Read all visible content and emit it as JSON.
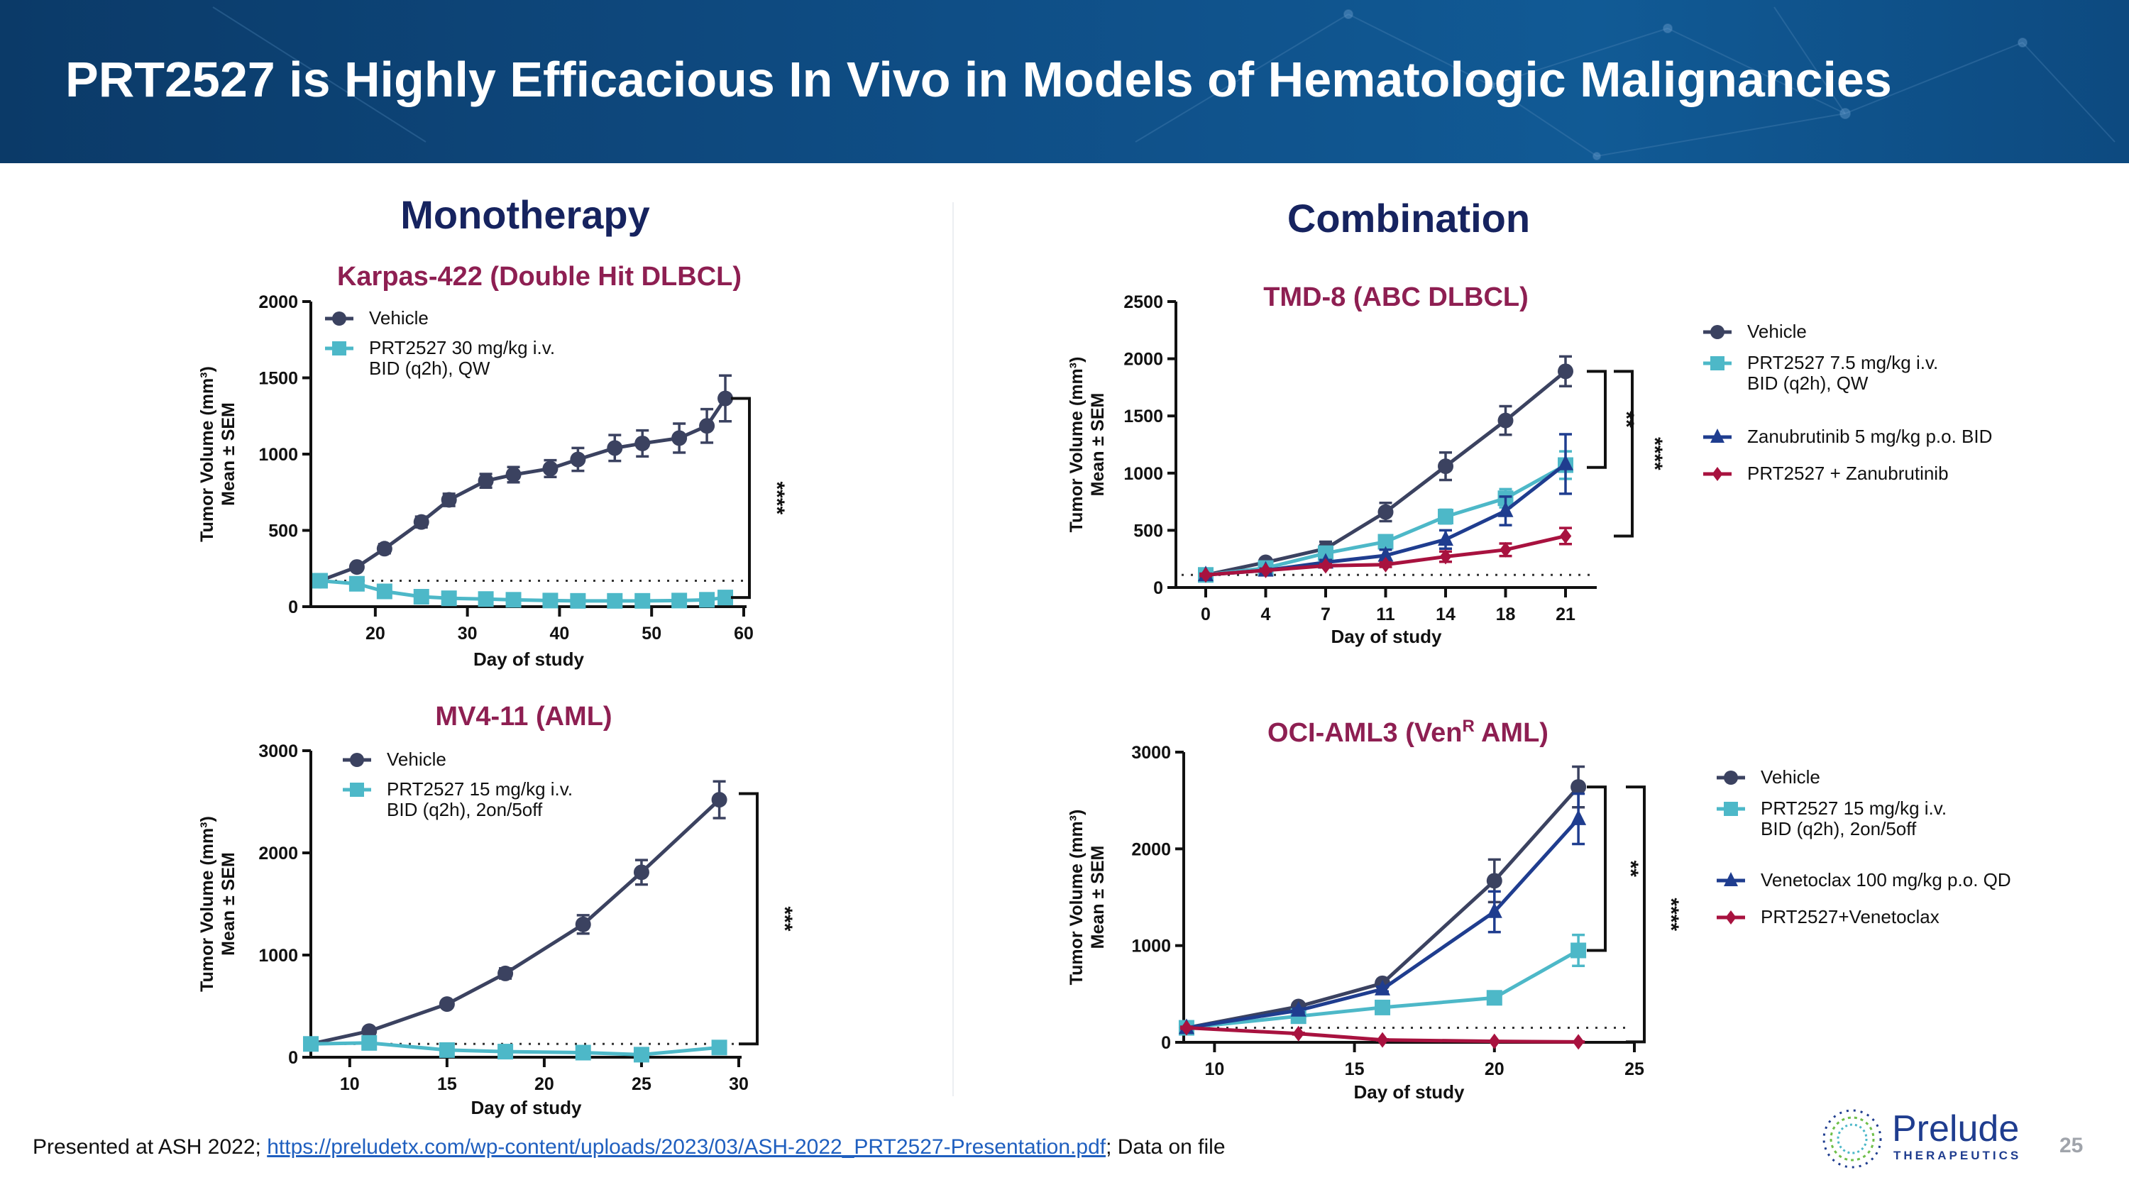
{
  "header": {
    "title": "PRT2527 is Highly Efficacious In Vivo in Models of Hematologic Malignancies"
  },
  "sections": {
    "left": "Monotherapy",
    "right": "Combination"
  },
  "footer": {
    "prefix": "Presented at ASH 2022; ",
    "link": "https://preludetx.com/wp-content/uploads/2023/03/ASH-2022_PRT2527-Presentation.pdf",
    "suffix": ";  Data on file",
    "page_number": "25"
  },
  "logo": {
    "name": "Prelude",
    "sub": "THERAPEUTICS"
  },
  "colors": {
    "title": "#8e1f52",
    "vehicle": "#3b4260",
    "prt2527": "#4db8c8",
    "partner": "#1f3d8f",
    "combo": "#a8123f",
    "header": "#0f4e86"
  },
  "chart_data": [
    {
      "type": "line",
      "title": "Karpas-422 (Double Hit DLBCL)",
      "xlabel": "Day of study",
      "ylabel": [
        "Tumor Volume (mm³)",
        "Mean ± SEM"
      ],
      "xlim": [
        13,
        60
      ],
      "ylim": [
        0,
        2000
      ],
      "xticks": [
        20,
        30,
        40,
        50,
        60
      ],
      "yticks": [
        0,
        500,
        1000,
        1500,
        2000
      ],
      "baseline": 170,
      "legend_position": "top-left",
      "x": [
        14,
        18,
        21,
        25,
        28,
        32,
        35,
        39,
        42,
        46,
        49,
        53,
        56,
        58
      ],
      "series": [
        {
          "name": [
            "Vehicle"
          ],
          "color": "#3b4260",
          "marker": "circle",
          "values": [
            170,
            260,
            380,
            555,
            700,
            825,
            865,
            905,
            965,
            1040,
            1070,
            1105,
            1185,
            1365
          ],
          "sem": [
            20,
            20,
            30,
            35,
            40,
            45,
            50,
            55,
            75,
            85,
            85,
            95,
            110,
            150
          ]
        },
        {
          "name": [
            "PRT2527 30 mg/kg i.v.",
            "BID (q2h), QW"
          ],
          "color": "#4db8c8",
          "marker": "square",
          "values": [
            170,
            150,
            100,
            65,
            55,
            50,
            45,
            40,
            38,
            38,
            38,
            40,
            45,
            60
          ],
          "sem": [
            10,
            10,
            8,
            6,
            5,
            5,
            5,
            5,
            5,
            5,
            5,
            5,
            5,
            8
          ]
        }
      ],
      "significance": [
        {
          "from": 1365,
          "to": 60,
          "label": "****"
        }
      ]
    },
    {
      "type": "line",
      "title": "TMD-8 (ABC DLBCL)",
      "xlabel": "Day of study",
      "ylabel": [
        "Tumor Volume (mm³)",
        "Mean ± SEM"
      ],
      "ylim": [
        0,
        2500
      ],
      "categories": [
        "0",
        "4",
        "7",
        "11",
        "14",
        "18",
        "21"
      ],
      "yticks": [
        0,
        500,
        1000,
        1500,
        2000,
        2500
      ],
      "baseline": 110,
      "legend_position": "right",
      "series": [
        {
          "name": [
            "Vehicle"
          ],
          "color": "#3b4260",
          "marker": "circle",
          "values": [
            110,
            220,
            340,
            660,
            1060,
            1460,
            1890
          ],
          "sem": [
            10,
            20,
            60,
            80,
            120,
            125,
            130
          ]
        },
        {
          "name": [
            "PRT2527 7.5 mg/kg i.v.",
            "BID (q2h), QW"
          ],
          "color": "#4db8c8",
          "marker": "square",
          "values": [
            110,
            170,
            300,
            400,
            620,
            780,
            1070
          ],
          "sem": [
            10,
            15,
            25,
            30,
            60,
            80,
            120
          ]
        },
        {
          "name": [
            "Zanubrutinib 5 mg/kg p.o. BID"
          ],
          "color": "#1f3d8f",
          "marker": "triangle",
          "values": [
            110,
            150,
            220,
            280,
            420,
            670,
            1080
          ],
          "sem": [
            10,
            15,
            20,
            50,
            80,
            125,
            260
          ]
        },
        {
          "name": [
            "PRT2527 + Zanubrutinib"
          ],
          "color": "#a8123f",
          "marker": "diamond",
          "values": [
            110,
            150,
            190,
            200,
            270,
            330,
            450
          ],
          "sem": [
            10,
            10,
            15,
            20,
            45,
            55,
            70
          ]
        }
      ],
      "significance": [
        {
          "from": 1890,
          "to": 1050,
          "label": "**"
        },
        {
          "from": 1890,
          "to": 450,
          "label": "****"
        }
      ]
    },
    {
      "type": "line",
      "title": "MV4-11 (AML)",
      "xlabel": "Day of study",
      "ylabel": [
        "Tumor Volume (mm³)",
        "Mean ± SEM"
      ],
      "xlim": [
        8,
        30
      ],
      "ylim": [
        0,
        3000
      ],
      "xticks": [
        10,
        15,
        20,
        25,
        30
      ],
      "yticks": [
        0,
        1000,
        2000,
        3000
      ],
      "baseline": 130,
      "legend_position": "top-left",
      "x": [
        8,
        11,
        15,
        18,
        22,
        25,
        29
      ],
      "series": [
        {
          "name": [
            "Vehicle"
          ],
          "color": "#3b4260",
          "marker": "circle",
          "values": [
            130,
            255,
            520,
            820,
            1300,
            1810,
            2520
          ],
          "sem": [
            10,
            15,
            20,
            50,
            90,
            120,
            180
          ]
        },
        {
          "name": [
            "PRT2527 15 mg/kg i.v.",
            "BID (q2h), 2on/5off"
          ],
          "color": "#4db8c8",
          "marker": "square",
          "values": [
            130,
            140,
            70,
            55,
            45,
            25,
            95
          ],
          "sem": [
            10,
            10,
            8,
            8,
            8,
            5,
            10
          ]
        }
      ],
      "significance": [
        {
          "from": 2580,
          "to": 130,
          "label": "***"
        }
      ]
    },
    {
      "type": "line",
      "title": "OCI-AML3 (Ven",
      "title_sup": "R",
      "title_end": " AML)",
      "xlabel": "Day of study",
      "ylabel": [
        "Tumor Volume (mm³)",
        "Mean ± SEM"
      ],
      "xlim": [
        8.9,
        25
      ],
      "ylim": [
        0,
        3000
      ],
      "xticks": [
        10,
        15,
        20,
        25
      ],
      "yticks": [
        0,
        1000,
        2000,
        3000
      ],
      "baseline": 150,
      "legend_position": "right",
      "x": [
        9,
        13,
        16,
        20,
        23
      ],
      "series": [
        {
          "name": [
            "Vehicle"
          ],
          "color": "#3b4260",
          "marker": "circle",
          "values": [
            150,
            370,
            610,
            1670,
            2640
          ],
          "sem": [
            10,
            20,
            25,
            220,
            210
          ]
        },
        {
          "name": [
            "PRT2527 15 mg/kg i.v.",
            "BID (q2h), 2on/5off"
          ],
          "color": "#4db8c8",
          "marker": "square",
          "values": [
            150,
            270,
            360,
            460,
            950
          ],
          "sem": [
            10,
            20,
            30,
            50,
            160
          ]
        },
        {
          "name": [
            "Venetoclax 100 mg/kg p.o. QD"
          ],
          "color": "#1f3d8f",
          "marker": "triangle",
          "values": [
            150,
            330,
            550,
            1350,
            2310
          ],
          "sem": [
            10,
            20,
            25,
            210,
            260
          ]
        },
        {
          "name": [
            "PRT2527+Venetoclax"
          ],
          "color": "#a8123f",
          "marker": "diamond",
          "values": [
            150,
            90,
            25,
            10,
            5
          ],
          "sem": [
            10,
            8,
            5,
            3,
            3
          ]
        }
      ],
      "significance": [
        {
          "from": 2640,
          "to": 950,
          "label": "**"
        },
        {
          "from": 2640,
          "to": 5,
          "label": "****"
        }
      ]
    }
  ]
}
